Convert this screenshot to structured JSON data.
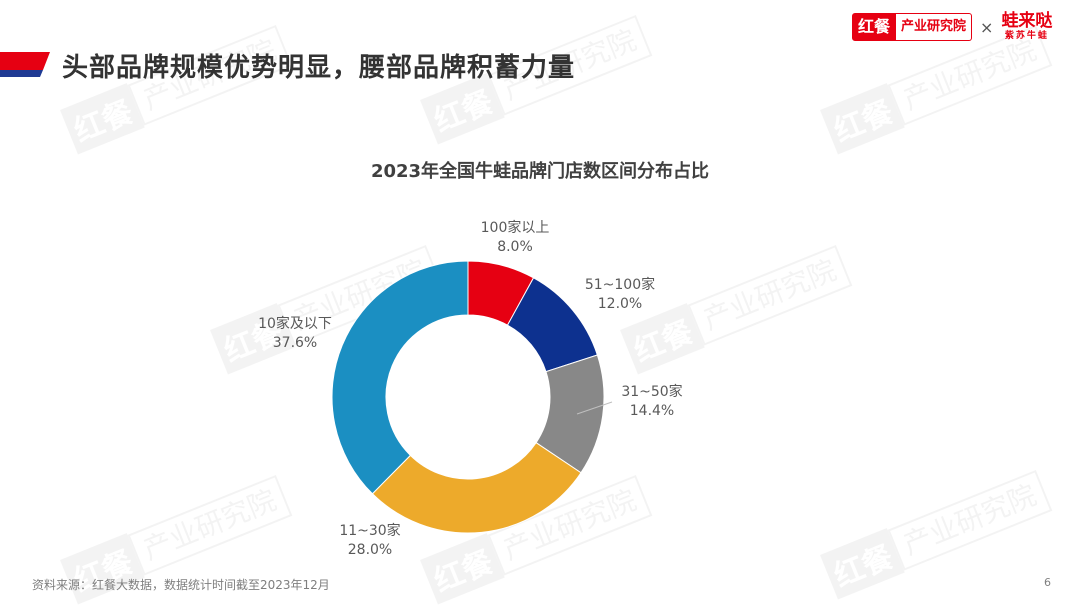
{
  "header": {
    "title": "头部品牌规模优势明显，腰部品牌积蓄力量",
    "accent_colors": {
      "red": "#e60012",
      "blue": "#1f3a93"
    }
  },
  "logo": {
    "hongcan": "红餐",
    "institute": "产业研究院",
    "times": "×",
    "brand_main": "蛙来哒",
    "brand_sub": "紫苏牛蛙"
  },
  "watermark": {
    "mark": "红餐",
    "text": "产业研究院"
  },
  "chart_data": {
    "type": "pie",
    "variant": "donut",
    "title": "2023年全国牛蛙品牌门店数区间分布占比",
    "categories": [
      "100家以上",
      "51~100家",
      "31~50家",
      "11~30家",
      "10家及以下"
    ],
    "values": [
      8.0,
      12.0,
      14.4,
      28.0,
      37.6
    ],
    "value_labels": [
      "8.0%",
      "12.0%",
      "14.4%",
      "28.0%",
      "37.6%"
    ],
    "colors": [
      "#e60012",
      "#0d318f",
      "#888888",
      "#edaa2b",
      "#1b8fc2"
    ],
    "start_angle": "12 o'clock",
    "direction": "clockwise",
    "legend": "none (data labels outside)"
  },
  "footer": {
    "source": "资料来源：红餐大数据，数据统计时间截至2023年12月",
    "page_number": "6"
  }
}
